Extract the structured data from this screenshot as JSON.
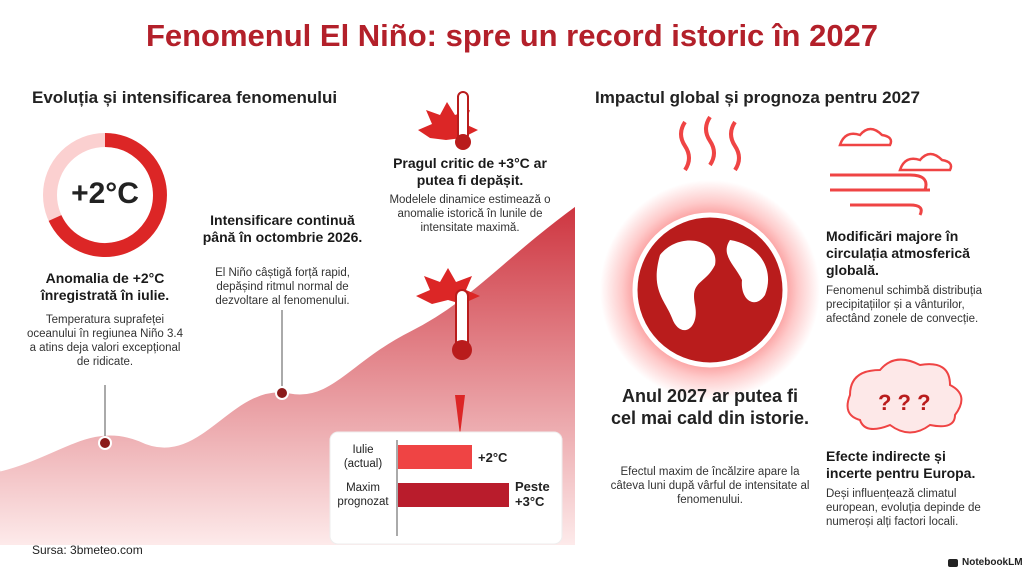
{
  "title": "Fenomenul El Niño: spre un record istoric în 2027",
  "left": {
    "heading": "Evoluția și intensificarea fenomenului",
    "gauge_label": "+2°C",
    "steps": [
      {
        "title": "Anomalia de +2°C înregistrată în iulie.",
        "text": "Temperatura suprafeței oceanului în regiunea Niño 3.4 a atins deja valori excepțional de ridicate."
      },
      {
        "title": "Intensificare continuă până în octombrie 2026.",
        "text": "El Niño câștigă forță rapid, depășind ritmul normal de dezvoltare al fenomenului."
      },
      {
        "title": "Pragul critic de +3°C ar putea fi depășit.",
        "text": "Modelele dinamice estimează o anomalie istorică în lunile de intensitate maximă."
      }
    ],
    "bar_chart": {
      "type": "bar",
      "categories": [
        "Iulie (actual)",
        "Maxim prognozat"
      ],
      "values": [
        2,
        3
      ],
      "value_labels": [
        "+2°C",
        "Peste +3°C"
      ],
      "colors": [
        "#ef4444",
        "#b91c2c"
      ]
    }
  },
  "right": {
    "heading": "Impactul global și prognoza pentru 2027",
    "center": {
      "title": "Anul 2027 ar putea fi cel mai cald din istorie.",
      "text": "Efectul maxim de încălzire apare la câteva luni după vârful de intensitate al fenomenului."
    },
    "items": [
      {
        "title": "Modificări majore în circulația atmosferică globală.",
        "text": "Fenomenul schimbă distribuția precipitațiilor și a vânturilor, afectând zonele de convecție."
      },
      {
        "title": "Efecte indirecte și incerte pentru Europa.",
        "text": "Deși influențează climatul european, evoluția depinde de numeroși alți factori locali."
      }
    ]
  },
  "footer": {
    "source": "Sursa: 3bmeteo.com",
    "brand": "NotebookLM"
  }
}
